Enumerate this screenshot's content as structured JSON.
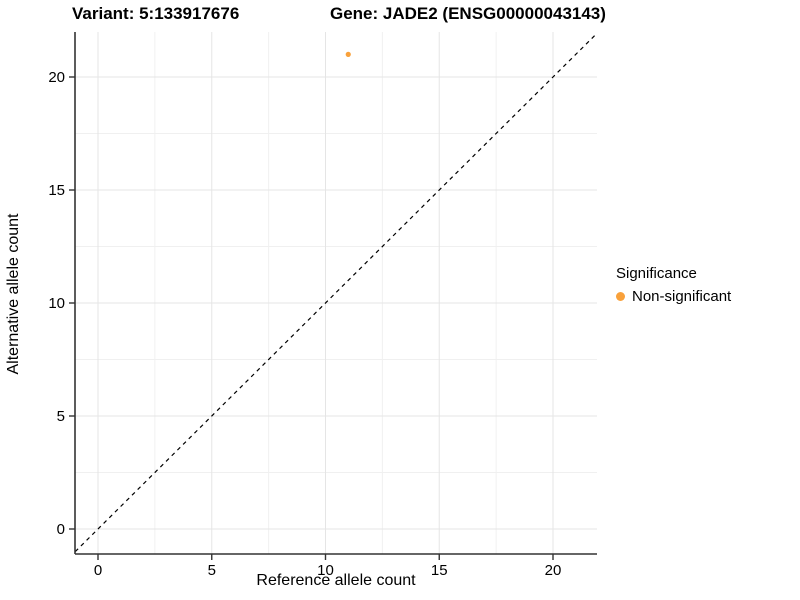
{
  "titles": {
    "variant": "Variant: 5:133917676",
    "gene": "Gene: JADE2 (ENSG00000043143)"
  },
  "legend": {
    "title": "Significance",
    "items": [
      {
        "label": "Non-significant",
        "color": "#F9A13B"
      }
    ]
  },
  "chart_data": {
    "type": "scatter",
    "xlabel": "Reference allele count",
    "ylabel": "Alternative allele count",
    "xticks": [
      0,
      5,
      10,
      15,
      20
    ],
    "yticks": [
      0,
      5,
      10,
      15,
      20
    ],
    "xlim": [
      -1.0,
      21.9
    ],
    "ylim": [
      -1.1,
      22.0
    ],
    "minor_grid_interval": 2.5,
    "grid": "major+minor on white background",
    "legend_position": "right",
    "series": [
      {
        "name": "Non-significant",
        "color": "#F9A13B",
        "points": [
          {
            "x": 11,
            "y": 21
          }
        ]
      }
    ],
    "identity_line": {
      "slope": 1,
      "intercept": 0,
      "style": "dashed",
      "color": "#000000"
    },
    "colors": {
      "point": "#F9A13B",
      "axis_line": "#333333",
      "major_grid": "#E5E5E5",
      "minor_grid": "#F0F0F0",
      "tick_label": "#000000"
    }
  }
}
